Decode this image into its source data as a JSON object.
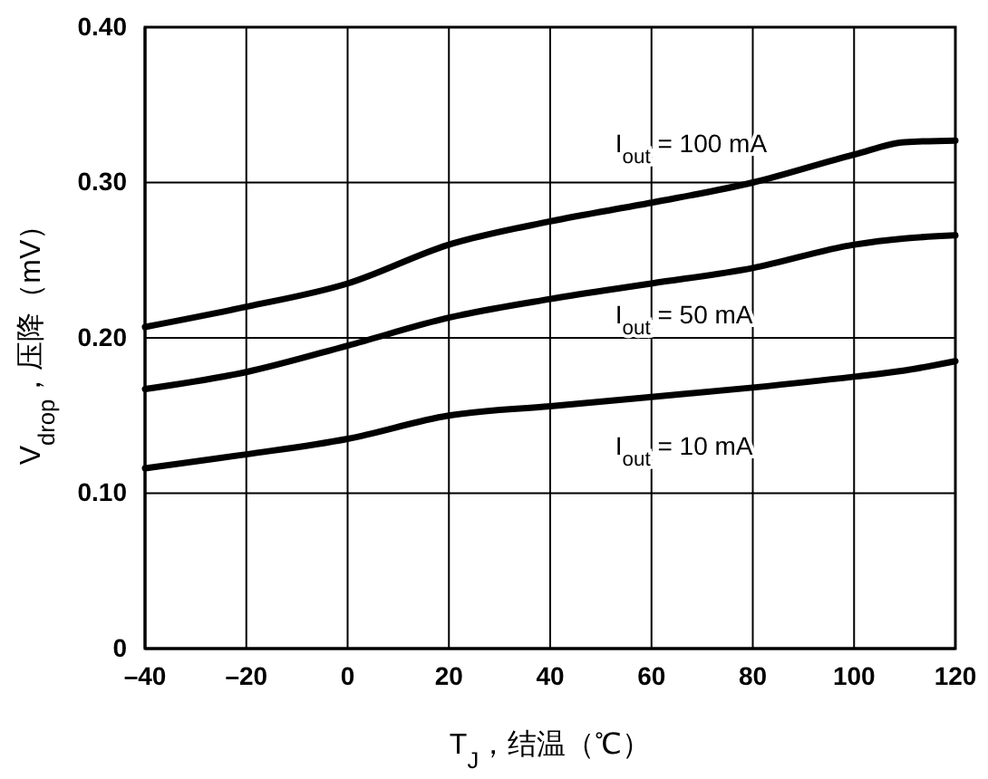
{
  "chart_data": {
    "type": "line",
    "xlabel": "T$_{J}$，结温（℃）",
    "ylabel": "V$_{drop}$，压降（mV）",
    "x": [
      -40,
      -20,
      0,
      20,
      40,
      60,
      80,
      100,
      110,
      120
    ],
    "series": [
      {
        "name": "I$_{out}$ = 100 mA",
        "color": "#000000",
        "values": [
          0.207,
          0.22,
          0.235,
          0.26,
          0.275,
          0.287,
          0.3,
          0.318,
          0.326,
          0.327
        ]
      },
      {
        "name": "I$_{out}$ = 50 mA",
        "color": "#000000",
        "values": [
          0.167,
          0.178,
          0.195,
          0.213,
          0.225,
          0.235,
          0.245,
          0.26,
          0.264,
          0.266
        ]
      },
      {
        "name": "I$_{out}$ = 10 mA",
        "color": "#000000",
        "values": [
          0.116,
          0.125,
          0.135,
          0.15,
          0.156,
          0.162,
          0.168,
          0.175,
          0.179,
          0.185
        ]
      }
    ],
    "xlim": [
      -40,
      120
    ],
    "xticks": [
      {
        "value": -40,
        "label": "–40"
      },
      {
        "value": -20,
        "label": "–20"
      },
      0,
      20,
      40,
      60,
      80,
      100,
      120
    ],
    "ylim": [
      0,
      0.4
    ],
    "yticks": [
      0,
      {
        "value": 0.1,
        "label": "0.10"
      },
      {
        "value": 0.2,
        "label": "0.20"
      },
      {
        "value": 0.3,
        "label": "0.30"
      },
      {
        "value": 0.4,
        "label": "0.40"
      }
    ],
    "grid": true,
    "legend": false,
    "marker": "none",
    "line_style": "solid"
  }
}
